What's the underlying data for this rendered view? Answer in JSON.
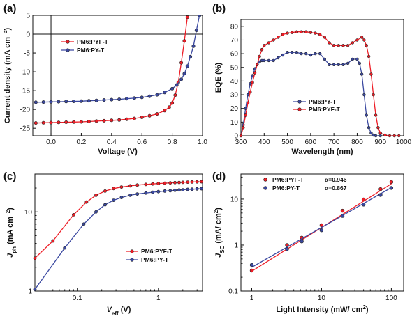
{
  "colors": {
    "red": "#ee1c25",
    "blue": "#3a48a0"
  },
  "chart_data": [
    {
      "panel": "(a)",
      "type": "line",
      "xlabel": "Voltage (V)",
      "ylabel": "Current density (mA cm⁻²)",
      "xlim": [
        -0.12,
        1.0
      ],
      "ylim": [
        -27,
        5
      ],
      "xticks": [
        "0.0",
        "0.2",
        "0.4",
        "0.6",
        "0.8",
        "1.0"
      ],
      "yticks": [
        "-25",
        "-20",
        "-15",
        "-10",
        "-5",
        "0",
        "5"
      ],
      "legend_position": "upper-left",
      "series": [
        {
          "name": "PM6:PYF-T",
          "color": "red",
          "x": [
            -0.1,
            -0.05,
            0.0,
            0.05,
            0.1,
            0.15,
            0.2,
            0.25,
            0.3,
            0.35,
            0.4,
            0.45,
            0.5,
            0.55,
            0.6,
            0.65,
            0.7,
            0.75,
            0.78,
            0.8,
            0.82,
            0.84,
            0.86,
            0.88,
            0.9
          ],
          "y": [
            -23.6,
            -23.55,
            -23.5,
            -23.45,
            -23.4,
            -23.35,
            -23.3,
            -23.2,
            -23.1,
            -23.0,
            -22.9,
            -22.8,
            -22.6,
            -22.4,
            -22.1,
            -21.7,
            -21.2,
            -20.3,
            -19.4,
            -18.3,
            -16.2,
            -12.8,
            -7.6,
            -1.8,
            4.5
          ]
        },
        {
          "name": "PM6:PY-T",
          "color": "blue",
          "x": [
            -0.1,
            -0.05,
            0.0,
            0.05,
            0.1,
            0.15,
            0.2,
            0.25,
            0.3,
            0.35,
            0.4,
            0.45,
            0.5,
            0.55,
            0.6,
            0.65,
            0.7,
            0.75,
            0.8,
            0.83,
            0.86,
            0.88,
            0.9,
            0.92,
            0.94,
            0.96,
            0.98
          ],
          "y": [
            -18.1,
            -18.05,
            -18.0,
            -17.95,
            -17.9,
            -17.85,
            -17.8,
            -17.7,
            -17.6,
            -17.5,
            -17.4,
            -17.3,
            -17.15,
            -17.0,
            -16.8,
            -16.5,
            -16.1,
            -15.5,
            -14.5,
            -13.5,
            -12.0,
            -10.5,
            -8.5,
            -6.0,
            -3.2,
            1.0,
            5.0
          ]
        }
      ]
    },
    {
      "panel": "(b)",
      "type": "line",
      "xlabel": "Wavelength (nm)",
      "ylabel": "EQE (%)",
      "xlim": [
        300,
        1000
      ],
      "ylim": [
        0,
        85
      ],
      "xticks": [
        "300",
        "400",
        "500",
        "600",
        "700",
        "800",
        "900",
        "1000"
      ],
      "yticks": [
        "0",
        "10",
        "20",
        "30",
        "40",
        "50",
        "60",
        "70",
        "80"
      ],
      "legend_position": "bottom-center",
      "series": [
        {
          "name": "PM6:PY-T",
          "color": "blue",
          "x": [
            300,
            310,
            320,
            330,
            340,
            350,
            360,
            370,
            380,
            390,
            400,
            420,
            440,
            460,
            480,
            500,
            520,
            540,
            560,
            580,
            600,
            620,
            640,
            660,
            680,
            700,
            720,
            740,
            760,
            780,
            800,
            810,
            820,
            830,
            840,
            850,
            860,
            870,
            880,
            900
          ],
          "y": [
            0,
            8,
            20,
            30,
            38,
            44,
            49,
            52,
            54,
            55,
            55,
            55,
            55,
            57,
            59,
            61,
            61,
            61,
            60,
            60,
            59,
            60,
            60,
            56,
            52,
            52,
            52,
            52,
            53,
            56,
            56,
            53,
            45,
            30,
            15,
            6,
            2,
            0.5,
            0,
            0
          ]
        },
        {
          "name": "PM6:PYF-T",
          "color": "red",
          "x": [
            300,
            310,
            320,
            330,
            340,
            350,
            360,
            370,
            380,
            390,
            400,
            420,
            440,
            460,
            480,
            500,
            520,
            540,
            560,
            580,
            600,
            620,
            640,
            660,
            680,
            700,
            720,
            740,
            760,
            780,
            800,
            820,
            830,
            840,
            850,
            860,
            870,
            880,
            890,
            900,
            920,
            940,
            960,
            980
          ],
          "y": [
            0,
            6,
            15,
            24,
            32,
            39,
            46,
            52,
            58,
            63,
            66,
            68,
            70,
            72,
            74,
            75,
            75.5,
            76,
            76,
            76,
            75.5,
            75,
            74,
            72,
            68,
            66,
            66,
            66,
            66,
            68,
            70,
            72,
            70,
            66,
            58,
            45,
            30,
            15,
            6,
            2,
            0.5,
            0,
            0,
            0
          ]
        }
      ]
    },
    {
      "panel": "(c)",
      "type": "line",
      "xlabel": "V_eff (V)",
      "ylabel": "J_ph (mA cm⁻²)",
      "xscale": "log",
      "yscale": "log",
      "xlim": [
        0.03,
        3.5
      ],
      "ylim": [
        1,
        30
      ],
      "xticks": [
        "0.1",
        "1"
      ],
      "yticks": [
        "1",
        "10"
      ],
      "legend_position": "lower-right",
      "series": [
        {
          "name": "PM6:PYF-T",
          "color": "red",
          "x": [
            0.03,
            0.05,
            0.09,
            0.13,
            0.17,
            0.22,
            0.28,
            0.35,
            0.45,
            0.55,
            0.7,
            0.85,
            1.0,
            1.2,
            1.4,
            1.6,
            1.8,
            2.0,
            2.3,
            2.6,
            3.0,
            3.4
          ],
          "y": [
            2.6,
            4.3,
            9.2,
            13.3,
            16.2,
            18.3,
            19.7,
            20.6,
            21.3,
            21.8,
            22.2,
            22.5,
            22.8,
            23.0,
            23.2,
            23.4,
            23.5,
            23.6,
            23.7,
            23.8,
            23.9,
            24.0
          ]
        },
        {
          "name": "PM6:PY-T",
          "color": "blue",
          "x": [
            0.03,
            0.07,
            0.12,
            0.17,
            0.22,
            0.28,
            0.35,
            0.45,
            0.55,
            0.7,
            0.85,
            1.0,
            1.2,
            1.4,
            1.6,
            1.8,
            2.0,
            2.3,
            2.6,
            3.0,
            3.4
          ],
          "y": [
            1.05,
            3.5,
            7.0,
            10.0,
            12.3,
            14.0,
            15.2,
            16.2,
            16.8,
            17.3,
            17.7,
            18.0,
            18.3,
            18.5,
            18.7,
            18.9,
            19.0,
            19.2,
            19.3,
            19.5,
            19.6
          ]
        }
      ]
    },
    {
      "panel": "(d)",
      "type": "scatter",
      "xlabel": "Light Intensity (mW/ cm²)",
      "ylabel": "J_SC (mA/ cm²)",
      "xscale": "log",
      "yscale": "log",
      "xlim": [
        0.7,
        150
      ],
      "ylim": [
        0.1,
        35
      ],
      "xticks": [
        "1",
        "10",
        "100"
      ],
      "yticks": [
        "0.1",
        "1",
        "10"
      ],
      "legend_position": "top-left",
      "series": [
        {
          "name": "PM6:PYF-T",
          "color": "red",
          "alpha": "α=0.946",
          "x": [
            1,
            3.2,
            5.2,
            10,
            20,
            40,
            70,
            100
          ],
          "y": [
            0.28,
            1.0,
            1.45,
            2.7,
            5.6,
            9.8,
            16.5,
            23.5
          ],
          "fit": {
            "x": [
              1,
              100
            ],
            "y": [
              0.27,
              21.5
            ]
          }
        },
        {
          "name": "PM6:PY-T",
          "color": "blue",
          "alpha": "α=0.867",
          "x": [
            1,
            3.2,
            5.2,
            10,
            20,
            40,
            70,
            100
          ],
          "y": [
            0.37,
            0.82,
            1.2,
            2.1,
            4.3,
            7.6,
            12.3,
            17.5
          ],
          "fit": {
            "x": [
              1,
              100
            ],
            "y": [
              0.33,
              17.8
            ]
          }
        }
      ]
    }
  ]
}
